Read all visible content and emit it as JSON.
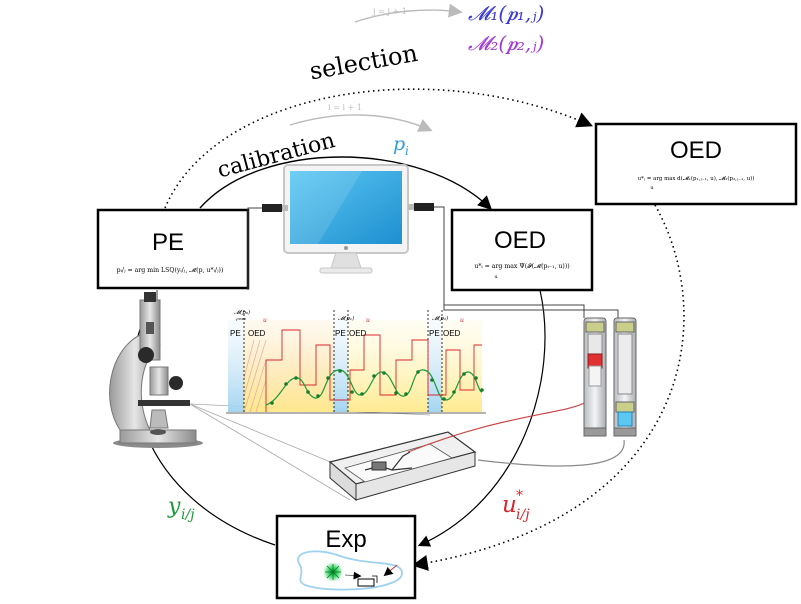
{
  "loop_labels": {
    "selection": "selection",
    "calibration": "calibration",
    "selection_counter": "j = j + 1",
    "calibration_counter": "i = i + 1",
    "p_i": "p",
    "p_i_sub": "i",
    "y_label": "y",
    "y_sub": "i/j",
    "u_label": "u",
    "u_sup": "*",
    "u_sub": "i/j"
  },
  "models": {
    "m1": "𝓜₁(𝒑₁,ⱼ)",
    "m2": "𝓜₂(𝒑₂,ⱼ)"
  },
  "boxes": {
    "pe": {
      "title": "PE",
      "formula": "pᵢ/ⱼ = arg min LSQ(yᵢ/ⱼ, 𝓜(p, u*ᵢ/ⱼ))"
    },
    "oed_top": {
      "title": "OED",
      "formula": "u*ⱼ = arg max d(𝓜₁(p₁,ⱼ₋₁, u), 𝓜₂(p₂,ⱼ₋₁, u))",
      "formula_sub": "u"
    },
    "oed_mid": {
      "title": "OED",
      "formula": "u*ᵢ = arg max Ψ(𝓕(𝓜(pᵢ₋₁, u)))",
      "formula_sub": "u"
    },
    "exp": {
      "title": "Exp"
    }
  },
  "mini_chart": {
    "phase_labels": [
      "PE",
      "OED",
      "PE",
      "OED",
      "PE",
      "OED"
    ],
    "model_tags": [
      "𝓜(p₀)",
      "𝓜(p₁)",
      "𝓜(p₂)"
    ],
    "time_tags": [
      "tᵀᴾᴼᴱᴰ"
    ],
    "u_tags": [
      "u",
      "u",
      "u"
    ]
  },
  "colors": {
    "blue": "#2f9fd8",
    "red": "#d8262c",
    "green": "#1e9a3a",
    "model1": "#3a3ad8",
    "model2": "#a23ad8",
    "grey": "#bbbbbb"
  }
}
